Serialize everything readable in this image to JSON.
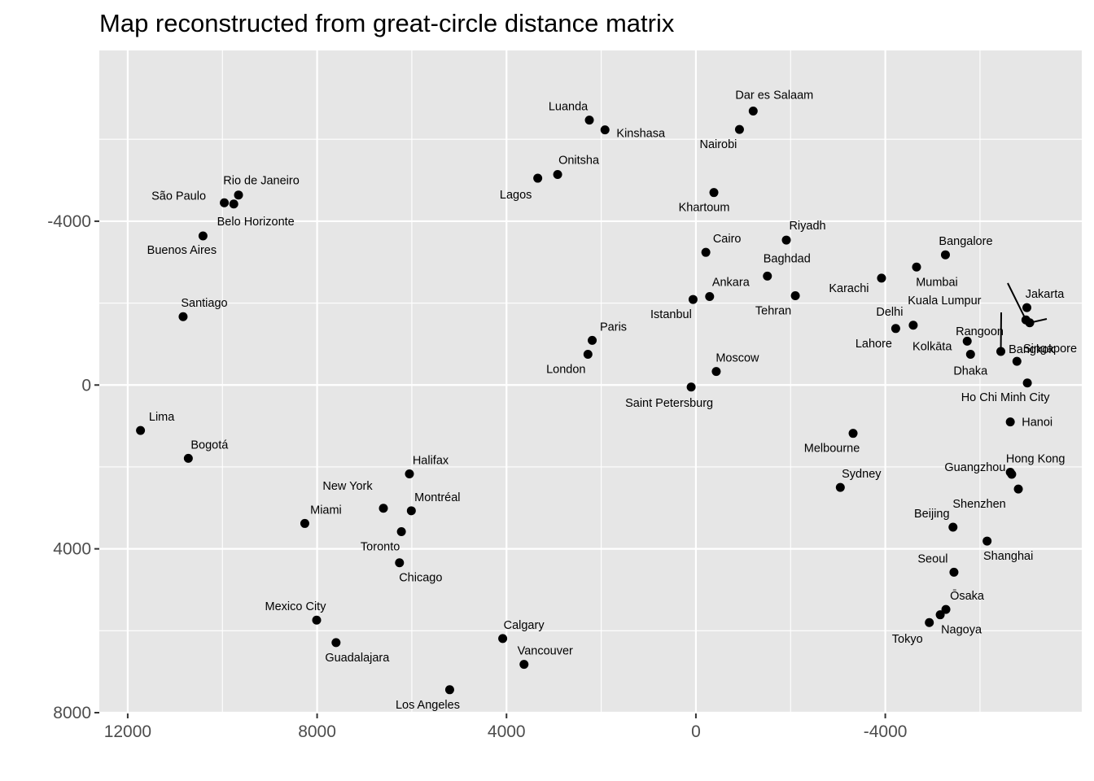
{
  "chart_data": {
    "type": "scatter",
    "title": "Map reconstructed from great-circle distance matrix",
    "xlabel": "",
    "ylabel": "",
    "x_reversed": true,
    "y_reversed": true,
    "xlim": [
      12600,
      -8150
    ],
    "ylim": [
      -8170,
      8020
    ],
    "x_ticks": [
      12000,
      8000,
      4000,
      0,
      -4000
    ],
    "x_tick_labels": [
      "12000",
      "8000",
      "4000",
      "0",
      "-4000"
    ],
    "y_ticks": [
      -4000,
      0,
      4000,
      8000
    ],
    "y_tick_labels": [
      "-4000",
      "0",
      "4000",
      "8000"
    ],
    "grid": true,
    "background": "#e6e6e6",
    "points": [
      {
        "label": "Luanda",
        "x": 2250,
        "y": -6470
      },
      {
        "label": "Kinshasa",
        "x": 1920,
        "y": -6230
      },
      {
        "label": "Dar es Salaam",
        "x": -1210,
        "y": -6690
      },
      {
        "label": "Nairobi",
        "x": -920,
        "y": -6240
      },
      {
        "label": "Onitsha",
        "x": 2920,
        "y": -5140
      },
      {
        "label": "Lagos",
        "x": 3340,
        "y": -5050
      },
      {
        "label": "Khartoum",
        "x": -380,
        "y": -4700
      },
      {
        "label": "Rio de Janeiro",
        "x": 9660,
        "y": -4640
      },
      {
        "label": "São Paulo",
        "x": 9960,
        "y": -4450
      },
      {
        "label": "Belo Horizonte",
        "x": 9760,
        "y": -4420
      },
      {
        "label": "Buenos Aires",
        "x": 10410,
        "y": -3640
      },
      {
        "label": "Riyadh",
        "x": -1910,
        "y": -3540
      },
      {
        "label": "Cairo",
        "x": -210,
        "y": -3240
      },
      {
        "label": "Bangalore",
        "x": -5270,
        "y": -3180
      },
      {
        "label": "Mumbai",
        "x": -4660,
        "y": -2880
      },
      {
        "label": "Baghdad",
        "x": -1510,
        "y": -2660
      },
      {
        "label": "Karachi",
        "x": -3920,
        "y": -2610
      },
      {
        "label": "Tehran",
        "x": -2100,
        "y": -2180
      },
      {
        "label": "Ankara",
        "x": -290,
        "y": -2160
      },
      {
        "label": "Istanbul",
        "x": 60,
        "y": -2090
      },
      {
        "label": "Santiago",
        "x": 10830,
        "y": -1670
      },
      {
        "label": "Jakarta",
        "x": -6990,
        "y": -1890
      },
      {
        "label": "Kuala Lumpur",
        "x": -6970,
        "y": -1590
      },
      {
        "label": "Singapore",
        "x": -7050,
        "y": -1520
      },
      {
        "label": "Delhi",
        "x": -4590,
        "y": -1460
      },
      {
        "label": "Lahore",
        "x": -4220,
        "y": -1380
      },
      {
        "label": "Paris",
        "x": 2190,
        "y": -1090
      },
      {
        "label": "Kolkāta",
        "x": -5730,
        "y": -1070
      },
      {
        "label": "Rangoon",
        "x": -6440,
        "y": -820
      },
      {
        "label": "London",
        "x": 2280,
        "y": -750
      },
      {
        "label": "Dhaka",
        "x": -5800,
        "y": -750
      },
      {
        "label": "Bangkok",
        "x": -6780,
        "y": -580
      },
      {
        "label": "Moscow",
        "x": -430,
        "y": -330
      },
      {
        "label": "Ho Chi Minh City",
        "x": -7000,
        "y": -50
      },
      {
        "label": "Saint Petersburg",
        "x": 100,
        "y": 50
      },
      {
        "label": "Lima",
        "x": 11730,
        "y": 1110
      },
      {
        "label": "Melbourne",
        "x": -3320,
        "y": 1180
      },
      {
        "label": "Hanoi",
        "x": -6640,
        "y": 900
      },
      {
        "label": "Bogotá",
        "x": 10720,
        "y": 1790
      },
      {
        "label": "Halifax",
        "x": 6050,
        "y": 2170
      },
      {
        "label": "Hong Kong",
        "x": -6640,
        "y": 2130
      },
      {
        "label": "Guangzhou",
        "x": -6670,
        "y": 2180
      },
      {
        "label": "Shenzhen",
        "x": -6810,
        "y": 2540
      },
      {
        "label": "Sydney",
        "x": -3050,
        "y": 2500
      },
      {
        "label": "New York",
        "x": 6600,
        "y": 3010
      },
      {
        "label": "Montréal",
        "x": 6010,
        "y": 3070
      },
      {
        "label": "Miami",
        "x": 8260,
        "y": 3380
      },
      {
        "label": "Beijing",
        "x": -5430,
        "y": 3470
      },
      {
        "label": "Toronto",
        "x": 6220,
        "y": 3580
      },
      {
        "label": "Shanghai",
        "x": -6150,
        "y": 3810
      },
      {
        "label": "Chicago",
        "x": 6260,
        "y": 4340
      },
      {
        "label": "Seoul",
        "x": -5450,
        "y": 4570
      },
      {
        "label": "Ōsaka",
        "x": -5280,
        "y": 5480
      },
      {
        "label": "Nagoya",
        "x": -5160,
        "y": 5610
      },
      {
        "label": "Mexico City",
        "x": 8010,
        "y": 5740
      },
      {
        "label": "Tokyo",
        "x": -4930,
        "y": 5800
      },
      {
        "label": "Calgary",
        "x": 4080,
        "y": 6190
      },
      {
        "label": "Guadalajara",
        "x": 7600,
        "y": 6290
      },
      {
        "label": "Vancouver",
        "x": 3630,
        "y": 6820
      },
      {
        "label": "Los Angeles",
        "x": 5200,
        "y": 7440
      }
    ]
  }
}
